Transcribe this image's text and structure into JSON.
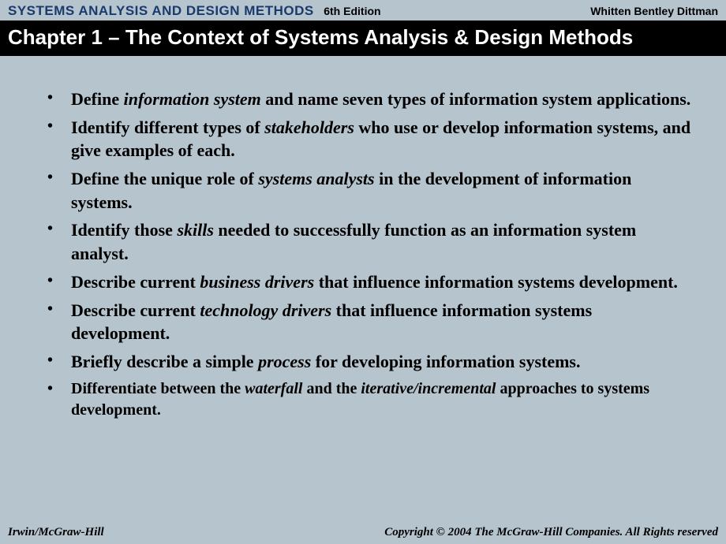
{
  "header": {
    "book_title": "SYSTEMS ANALYSIS AND DESIGN METHODS",
    "edition": "6th Edition",
    "authors": "Whitten   Bentley   Dittman"
  },
  "chapter_title": "Chapter 1 – The Context of Systems Analysis & Design Methods",
  "objectives": [
    {
      "pre": "Define ",
      "em": "information system",
      "post": " and name seven types of information system applications."
    },
    {
      "pre": "Identify different types of ",
      "em": "stakeholders",
      "post": " who use or develop information systems, and give examples of each."
    },
    {
      "pre": "Define the unique role of ",
      "em": "systems analysts",
      "post": " in the development of information systems."
    },
    {
      "pre": "Identify those ",
      "em": "skills",
      "post": " needed to successfully function as an information system analyst."
    },
    {
      "pre": "Describe current ",
      "em": "business drivers",
      "post": " that influence information systems development."
    },
    {
      "pre": "Describe current ",
      "em": "technology drivers",
      "post": " that influence information systems development."
    },
    {
      "pre": "Briefly describe a simple ",
      "em": "process",
      "post": " for developing information systems."
    },
    {
      "pre": "Differentiate between the ",
      "em": "waterfall",
      "mid": " and the ",
      "em2": "iterative/incremental",
      "post": " approaches to systems development.",
      "small": true
    }
  ],
  "footer": {
    "left": "Irwin/McGraw-Hill",
    "right": "Copyright © 2004 The McGraw-Hill Companies. All Rights reserved"
  },
  "colors": {
    "page_bg": "#b6c4cd",
    "title_color": "#1a3a6e",
    "bar_bg": "#000000",
    "bar_fg": "#ffffff",
    "text": "#000000"
  }
}
